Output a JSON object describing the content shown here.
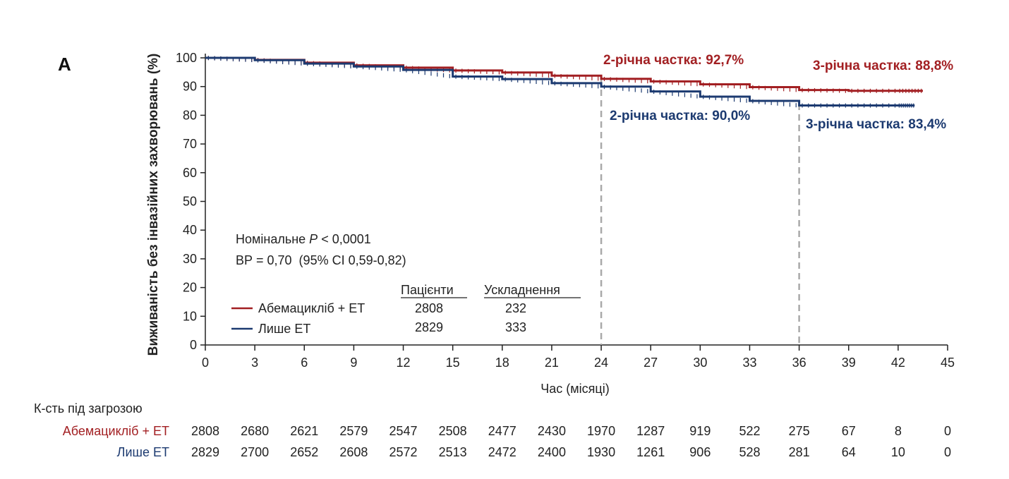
{
  "panel_label": "A",
  "colors": {
    "abema": "#a21f22",
    "et": "#1c3a70",
    "ref_line": "#a9a9a9",
    "axis": "#222222"
  },
  "chart_data": {
    "type": "line",
    "ylabel": "Виживаність без інвазійних захворювань (%)",
    "xlabel": "Час (місяці)",
    "xlim": [
      0,
      45
    ],
    "ylim": [
      0,
      100
    ],
    "xticks": [
      "0",
      "3",
      "6",
      "9",
      "12",
      "15",
      "18",
      "21",
      "24",
      "27",
      "30",
      "33",
      "36",
      "39",
      "42",
      "45"
    ],
    "yticks": [
      "0",
      "10",
      "20",
      "30",
      "40",
      "50",
      "60",
      "70",
      "80",
      "90",
      "100"
    ],
    "grid": false,
    "reference_lines_x": [
      24,
      36
    ],
    "series": [
      {
        "name": "Абемацикліб + ET",
        "color": "#a21f22",
        "x": [
          0,
          3,
          6,
          9,
          12,
          15,
          18,
          21,
          24,
          27,
          30,
          33,
          36,
          39,
          42,
          43.5
        ],
        "y": [
          100,
          99.3,
          98.3,
          97.4,
          96.6,
          95.6,
          94.9,
          93.8,
          92.7,
          91.8,
          90.8,
          89.8,
          88.8,
          88.5,
          88.5,
          88.5
        ]
      },
      {
        "name": "Лише ET",
        "color": "#1c3a70",
        "x": [
          0,
          3,
          6,
          9,
          12,
          15,
          18,
          21,
          24,
          27,
          30,
          33,
          36,
          39,
          42,
          43
        ],
        "y": [
          100,
          99.2,
          98.0,
          97.0,
          95.8,
          93.5,
          92.6,
          91.2,
          90.0,
          88.3,
          86.5,
          85.0,
          83.4,
          83.4,
          83.4,
          83.4
        ]
      }
    ],
    "annotations": [
      {
        "text": "2-річна частка: 92,7%",
        "series": "abema"
      },
      {
        "text": "3-річна частка: 88,8%",
        "series": "abema"
      },
      {
        "text": "2-річна частка: 90,0%",
        "series": "et"
      },
      {
        "text": "3-річна частка: 83,4%",
        "series": "et"
      }
    ],
    "stats": {
      "p_prefix": "Номінальне ",
      "p_symbol": "P",
      "p_value": " < 0,0001",
      "hr": "ВР = 0,70  (95% CI 0,59-0,82)"
    },
    "legend_table": {
      "col_patients": "Пацієнти",
      "col_events": "Ускладнення",
      "rows": [
        {
          "label": "Абемацикліб + ET",
          "patients": "2808",
          "events": "232"
        },
        {
          "label": "Лише ET",
          "patients": "2829",
          "events": "333"
        }
      ]
    },
    "at_risk": {
      "title": "К-сть під загрозою",
      "rows": [
        {
          "label": "Абемацикліб + ET",
          "values": [
            "2808",
            "2680",
            "2621",
            "2579",
            "2547",
            "2508",
            "2477",
            "2430",
            "1970",
            "1287",
            "919",
            "522",
            "275",
            "67",
            "8",
            "0"
          ]
        },
        {
          "label": "Лише ET",
          "values": [
            "2829",
            "2700",
            "2652",
            "2608",
            "2572",
            "2513",
            "2472",
            "2400",
            "1930",
            "1261",
            "906",
            "528",
            "281",
            "64",
            "10",
            "0"
          ]
        }
      ]
    }
  }
}
